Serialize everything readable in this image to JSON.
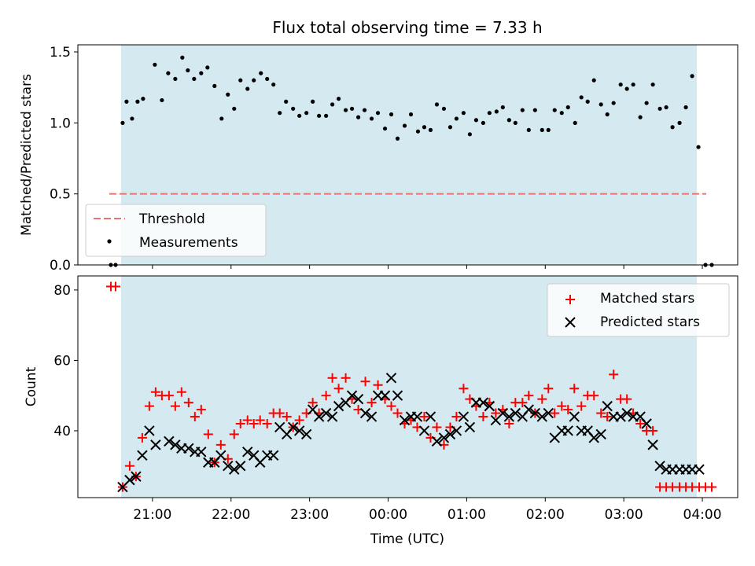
{
  "chart_data": [
    {
      "type": "scatter",
      "title": "Flux total observing time = 7.33 h",
      "ylabel": "Matched/Predicted stars",
      "ylim": [
        0,
        1.55
      ],
      "yticks": [
        "0.0",
        "0.5",
        "1.0",
        "1.5"
      ],
      "xlim_hours": [
        20.05,
        28.45
      ],
      "observing_window_hours": [
        20.6,
        27.93
      ],
      "shading_color": "#d4eaf0",
      "legend_position": "lower-left",
      "threshold": {
        "name": "Threshold",
        "value": 0.5,
        "x_range_hours": [
          20.45,
          28.05
        ],
        "color": "#f07070"
      },
      "measurements": {
        "name": "Measurements",
        "color": "#000000",
        "x_hours": [
          20.47,
          20.53,
          20.62,
          20.67,
          20.74,
          20.81,
          20.88,
          21.03,
          21.12,
          21.2,
          21.29,
          21.38,
          21.45,
          21.53,
          21.62,
          21.7,
          21.79,
          21.88,
          21.96,
          22.04,
          22.12,
          22.21,
          22.29,
          22.38,
          22.46,
          22.54,
          22.62,
          22.7,
          22.79,
          22.87,
          22.96,
          23.04,
          23.12,
          23.21,
          23.29,
          23.37,
          23.46,
          23.54,
          23.62,
          23.7,
          23.79,
          23.87,
          23.96,
          24.04,
          24.12,
          24.21,
          24.29,
          24.38,
          24.46,
          24.54,
          24.62,
          24.71,
          24.79,
          24.87,
          24.96,
          25.04,
          25.12,
          25.21,
          25.29,
          25.38,
          25.46,
          25.54,
          25.62,
          25.71,
          25.79,
          25.87,
          25.96,
          26.04,
          26.12,
          26.21,
          26.29,
          26.38,
          26.46,
          26.54,
          26.62,
          26.71,
          26.79,
          26.87,
          26.96,
          27.04,
          27.12,
          27.21,
          27.29,
          27.37,
          27.46,
          27.54,
          27.62,
          27.71,
          27.79,
          27.87,
          27.95,
          28.04,
          28.12
        ],
        "values": [
          0.0,
          0.0,
          1.0,
          1.15,
          1.03,
          1.15,
          1.17,
          1.41,
          1.16,
          1.35,
          1.31,
          1.46,
          1.37,
          1.31,
          1.35,
          1.39,
          1.26,
          1.03,
          1.2,
          1.1,
          1.3,
          1.24,
          1.3,
          1.35,
          1.31,
          1.27,
          1.07,
          1.15,
          1.1,
          1.05,
          1.07,
          1.15,
          1.05,
          1.05,
          1.13,
          1.17,
          1.09,
          1.1,
          1.04,
          1.09,
          1.03,
          1.07,
          0.96,
          1.06,
          0.89,
          0.98,
          1.06,
          0.94,
          0.97,
          0.95,
          1.13,
          1.1,
          0.97,
          1.03,
          1.07,
          0.92,
          1.02,
          1.0,
          1.07,
          1.08,
          1.11,
          1.02,
          1.0,
          1.09,
          0.95,
          1.09,
          0.95,
          0.95,
          1.09,
          1.07,
          1.11,
          1.0,
          1.18,
          1.15,
          1.3,
          1.13,
          1.06,
          1.14,
          1.27,
          1.24,
          1.27,
          1.04,
          1.14,
          1.27,
          1.1,
          1.11,
          0.97,
          1.0,
          1.11,
          1.33,
          0.83,
          0.0,
          0.0
        ]
      }
    },
    {
      "type": "scatter",
      "xlabel": "Time (UTC)",
      "ylabel": "Count",
      "ylim": [
        21,
        84
      ],
      "yticks": [
        "40",
        "60",
        "80"
      ],
      "xticks": [
        "21:00",
        "22:00",
        "23:00",
        "00:00",
        "01:00",
        "02:00",
        "03:00",
        "04:00"
      ],
      "xlim_hours": [
        20.05,
        28.45
      ],
      "observing_window_hours": [
        20.6,
        27.93
      ],
      "legend_position": "upper-right",
      "series": [
        {
          "name": "Matched stars",
          "marker": "plus",
          "color": "#ff0000",
          "x_hours": [
            20.47,
            20.53,
            20.62,
            20.71,
            20.79,
            20.87,
            20.96,
            21.04,
            21.12,
            21.21,
            21.29,
            21.37,
            21.46,
            21.54,
            21.62,
            21.71,
            21.79,
            21.87,
            21.96,
            22.04,
            22.12,
            22.21,
            22.29,
            22.37,
            22.46,
            22.54,
            22.62,
            22.71,
            22.79,
            22.87,
            22.96,
            23.04,
            23.12,
            23.21,
            23.29,
            23.37,
            23.46,
            23.54,
            23.62,
            23.71,
            23.79,
            23.87,
            23.96,
            24.04,
            24.12,
            24.21,
            24.29,
            24.37,
            24.46,
            24.54,
            24.62,
            24.71,
            24.79,
            24.87,
            24.96,
            25.04,
            25.12,
            25.21,
            25.29,
            25.37,
            25.46,
            25.54,
            25.62,
            25.71,
            25.79,
            25.87,
            25.96,
            26.04,
            26.12,
            26.21,
            26.29,
            26.37,
            26.46,
            26.54,
            26.62,
            26.71,
            26.79,
            26.87,
            26.96,
            27.04,
            27.12,
            27.21,
            27.29,
            27.37,
            27.46,
            27.54,
            27.62,
            27.71,
            27.79,
            27.87,
            27.96,
            28.04,
            28.12
          ],
          "values": [
            81,
            81,
            24,
            30,
            27,
            38,
            47,
            51,
            50,
            50,
            47,
            51,
            48,
            44,
            46,
            39,
            31,
            36,
            32,
            39,
            42,
            43,
            42,
            43,
            42,
            45,
            45,
            44,
            41,
            43,
            45,
            48,
            45,
            50,
            55,
            52,
            55,
            49,
            46,
            54,
            48,
            53,
            49,
            47,
            45,
            42,
            43,
            41,
            44,
            38,
            41,
            36,
            41,
            44,
            52,
            49,
            47,
            44,
            48,
            45,
            46,
            42,
            48,
            48,
            50,
            45,
            49,
            52,
            45,
            47,
            46,
            52,
            47,
            50,
            50,
            45,
            44,
            56,
            49,
            49,
            45,
            42,
            40,
            40,
            24,
            24,
            24,
            24,
            24,
            24,
            24,
            24,
            24
          ]
        },
        {
          "name": "Predicted stars",
          "marker": "x",
          "color": "#000000",
          "x_hours": [
            20.62,
            20.71,
            20.79,
            20.87,
            20.96,
            21.04,
            21.21,
            21.29,
            21.37,
            21.46,
            21.54,
            21.62,
            21.71,
            21.79,
            21.87,
            21.96,
            22.04,
            22.12,
            22.21,
            22.29,
            22.37,
            22.46,
            22.54,
            22.62,
            22.71,
            22.79,
            22.87,
            22.96,
            23.04,
            23.12,
            23.21,
            23.29,
            23.37,
            23.46,
            23.54,
            23.62,
            23.71,
            23.79,
            23.87,
            23.96,
            24.04,
            24.12,
            24.21,
            24.29,
            24.37,
            24.46,
            24.54,
            24.62,
            24.71,
            24.79,
            24.87,
            24.96,
            25.04,
            25.12,
            25.21,
            25.29,
            25.37,
            25.46,
            25.54,
            25.62,
            25.71,
            25.79,
            25.87,
            25.96,
            26.04,
            26.12,
            26.21,
            26.29,
            26.37,
            26.46,
            26.54,
            26.62,
            26.71,
            26.79,
            26.87,
            26.96,
            27.04,
            27.12,
            27.21,
            27.29,
            27.37,
            27.46,
            27.54,
            27.62,
            27.71,
            27.79,
            27.87,
            27.96
          ],
          "values": [
            24,
            26,
            27,
            33,
            40,
            36,
            37,
            36,
            35,
            35,
            34,
            34,
            31,
            31,
            33,
            30,
            29,
            30,
            34,
            33,
            31,
            33,
            33,
            41,
            39,
            41,
            40,
            39,
            46,
            44,
            45,
            44,
            47,
            48,
            50,
            49,
            45,
            44,
            50,
            50,
            55,
            50,
            43,
            44,
            44,
            40,
            44,
            37,
            38,
            39,
            40,
            44,
            41,
            48,
            48,
            47,
            43,
            45,
            44,
            45,
            44,
            46,
            45,
            44,
            45,
            38,
            40,
            40,
            44,
            40,
            40,
            38,
            39,
            47,
            44,
            44,
            45,
            44,
            44,
            42,
            36,
            30,
            29,
            29,
            29,
            29,
            29,
            29
          ]
        }
      ]
    }
  ]
}
